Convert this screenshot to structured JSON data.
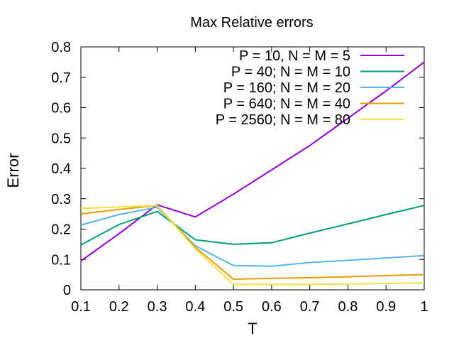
{
  "chart_data": {
    "type": "line",
    "title": "Max Relative errors",
    "xlabel": "T",
    "ylabel": "Error",
    "xlim": [
      0.1,
      1.0
    ],
    "ylim": [
      0.0,
      0.8
    ],
    "x": [
      0.1,
      0.2,
      0.3,
      0.4,
      0.5,
      0.6,
      0.7,
      0.8,
      0.9,
      1.0
    ],
    "xticks": [
      "0.1",
      "0.2",
      "0.3",
      "0.4",
      "0.5",
      "0.6",
      "0.7",
      "0.8",
      "0.9",
      "1"
    ],
    "yticks": [
      "0",
      "0.1",
      "0.2",
      "0.3",
      "0.4",
      "0.5",
      "0.6",
      "0.7",
      "0.8"
    ],
    "grid": false,
    "legend_position": "top-right",
    "series": [
      {
        "name": "P = 10, N = M = 5",
        "color": "#9400d3",
        "values": [
          0.095,
          0.185,
          0.28,
          0.24,
          0.315,
          0.395,
          0.475,
          0.565,
          0.655,
          0.75
        ]
      },
      {
        "name": "P = 40; N = M = 10",
        "color": "#009e73",
        "values": [
          0.148,
          0.215,
          0.258,
          0.165,
          0.15,
          0.155,
          0.187,
          0.217,
          0.248,
          0.278
        ]
      },
      {
        "name": "P = 160; N = M = 20",
        "color": "#56b4e9",
        "values": [
          0.213,
          0.248,
          0.272,
          0.145,
          0.08,
          0.078,
          0.09,
          0.097,
          0.105,
          0.113
        ]
      },
      {
        "name": "P = 640; N = M = 40",
        "color": "#e69f00",
        "values": [
          0.25,
          0.265,
          0.278,
          0.14,
          0.035,
          0.038,
          0.04,
          0.043,
          0.047,
          0.05
        ]
      },
      {
        "name": "P = 2560; N = M = 80",
        "color": "#f0e442",
        "values": [
          0.268,
          0.273,
          0.278,
          0.135,
          0.018,
          0.018,
          0.018,
          0.019,
          0.021,
          0.023
        ]
      }
    ]
  }
}
